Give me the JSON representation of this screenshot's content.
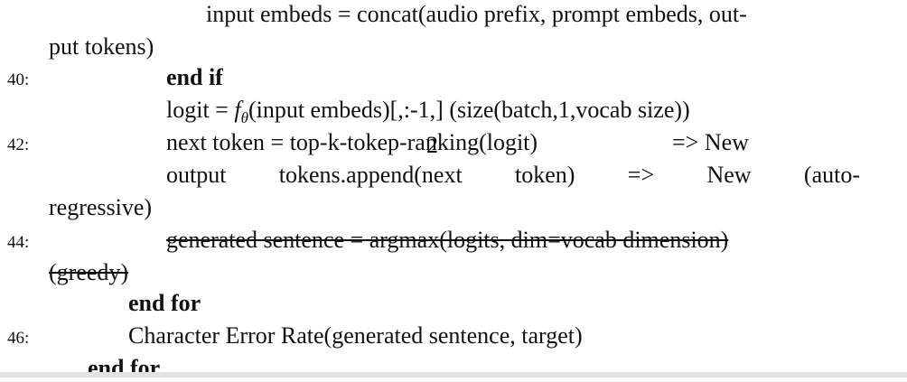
{
  "lines": {
    "l1": "input embeds = concat(audio prefix, prompt embeds, out-",
    "l2": "put tokens)",
    "l3_num": "40:",
    "l3": "end if",
    "l4_pre": "logit = ",
    "l4_f": "f",
    "l4_sub": "θ",
    "l4_post": "(input embeds)[,:-1,] (size(batch,1,vocab size))",
    "l5_num": "42:",
    "l5_a": "next token = top-k-tokep-ranking(logit)",
    "l5_b": "=> New",
    "l6_words": [
      "output",
      "tokens.append(next",
      "token)",
      "=>",
      "New",
      "(auto-"
    ],
    "l7": "regressive)",
    "l8_num": "44:",
    "l8": "generated sentence = argmax(logits, dim=vocab dimension)",
    "l9": "(greedy)",
    "l10": "end for",
    "l11_num": "46:",
    "l11": "Character Error Rate(generated sentence, target)",
    "l12": "end for",
    "page_number": "2"
  }
}
